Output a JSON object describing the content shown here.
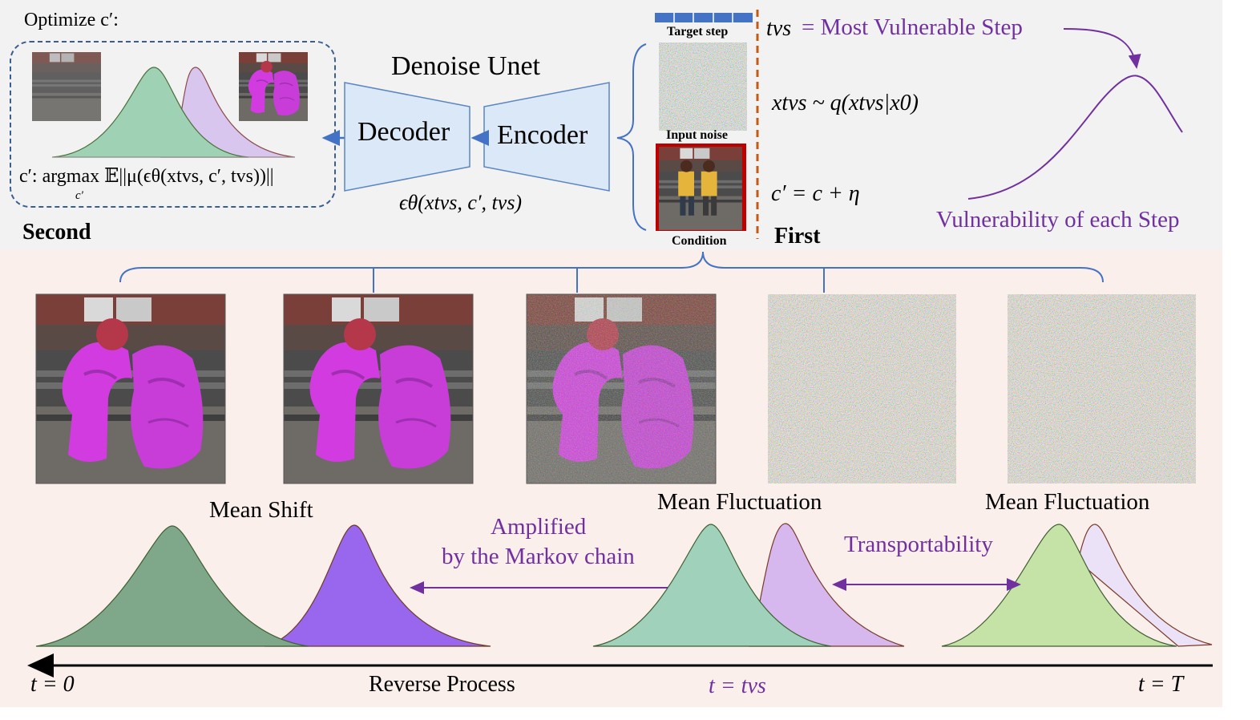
{
  "colors": {
    "top_bg": "#f2f2f2",
    "bottom_bg": "#fbefeb",
    "unet_fill": "#dae8f7",
    "unet_stroke": "#5b86bf",
    "accent_purple": "#7030a0",
    "arrow_blue": "#4472c4",
    "dash_orange": "#c55a11",
    "condition_border": "#c00000",
    "target_step_blue": "#4472c4"
  },
  "top": {
    "optimize_label": "Optimize c′:",
    "second_label": "Second",
    "argmax_formula": "c′: argmax 𝔼||μ(ϵθ(xtvs, c′, tvs))||",
    "argmax_sub": "c′",
    "unet_title": "Denoise Unet",
    "decoder_label": "Decoder",
    "encoder_label": "Encoder",
    "eps_formula": "ϵθ(xtvs, c′, tvs)",
    "target_step_label": "Target step",
    "input_noise_label": "Input noise",
    "condition_label": "Condition",
    "first_label": "First",
    "tvs_symbol": "tvs",
    "tvs_definition": "= Most Vulnerable Step",
    "sample_formula": "xtvs ~ q(xtvs|x0)",
    "cond_formula": "c′ = c + η",
    "vulnerability_label": "Vulnerability of each Step"
  },
  "bottom": {
    "mean_shift_label": "Mean Shift",
    "mean_fluct_label_1": "Mean Fluctuation",
    "mean_fluct_label_2": "Mean Fluctuation",
    "amplified_line1": "Amplified",
    "amplified_line2": "by the Markov chain",
    "transportability_label": "Transportability",
    "t0_label": "t = 0",
    "reverse_label": "Reverse Process",
    "tvs_axis_label": "t = tvs",
    "tT_label": "t = T"
  },
  "icons": [
    "scene-image",
    "noise-image",
    "bell-curve",
    "arrow",
    "brace"
  ]
}
